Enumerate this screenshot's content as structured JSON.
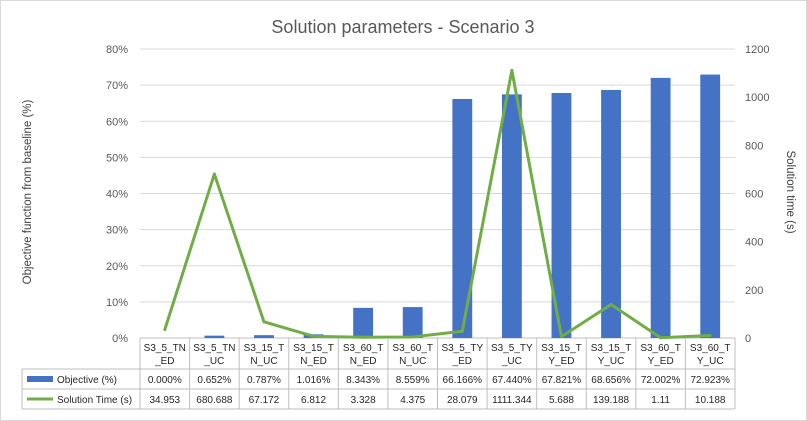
{
  "chart_data": {
    "type": "bar",
    "title": "Solution parameters - Scenario 3",
    "ylabel": "Objective function from baseline (%)",
    "y2label": "Solution time (s)",
    "ylim": [
      0,
      80
    ],
    "y2lim": [
      0,
      1200
    ],
    "yticks": [
      "0%",
      "10%",
      "20%",
      "30%",
      "40%",
      "50%",
      "60%",
      "70%",
      "80%"
    ],
    "y2ticks": [
      "0",
      "200",
      "400",
      "600",
      "800",
      "1000",
      "1200"
    ],
    "categories": [
      [
        "S3_5_TN",
        "_ED"
      ],
      [
        "S3_5_TN",
        "_UC"
      ],
      [
        "S3_15_T",
        "N_UC"
      ],
      [
        "S3_15_T",
        "N_ED"
      ],
      [
        "S3_60_T",
        "N_ED"
      ],
      [
        "S3_60_T",
        "N_UC"
      ],
      [
        "S3_5_TY",
        "_ED"
      ],
      [
        "S3_5_TY",
        "_UC"
      ],
      [
        "S3_15_T",
        "Y_ED"
      ],
      [
        "S3_15_T",
        "Y_UC"
      ],
      [
        "S3_60_T",
        "Y_ED"
      ],
      [
        "S3_60_T",
        "Y_UC"
      ]
    ],
    "grid": true,
    "legend": "data-table",
    "series": [
      {
        "name": "Objective (%)",
        "type": "bar",
        "axis": "left",
        "color": "#4472C4",
        "values": [
          0.0,
          0.652,
          0.787,
          1.016,
          8.343,
          8.559,
          66.166,
          67.44,
          67.821,
          68.656,
          72.002,
          72.923
        ],
        "labels": [
          "0.000%",
          "0.652%",
          "0.787%",
          "1.016%",
          "8.343%",
          "8.559%",
          "66.166%",
          "67.440%",
          "67.821%",
          "68.656%",
          "72.002%",
          "72.923%"
        ]
      },
      {
        "name": "Solution Time (s)",
        "type": "line",
        "axis": "right",
        "color": "#70AD47",
        "values": [
          34.953,
          680.688,
          67.172,
          6.812,
          3.328,
          4.375,
          28.079,
          1111.344,
          5.688,
          139.188,
          1.11,
          10.188
        ],
        "labels": [
          "34.953",
          "680.688",
          "67.172",
          "6.812",
          "3.328",
          "4.375",
          "28.079",
          "1111.344",
          "5.688",
          "139.188",
          "1.11",
          "10.188"
        ]
      }
    ]
  }
}
